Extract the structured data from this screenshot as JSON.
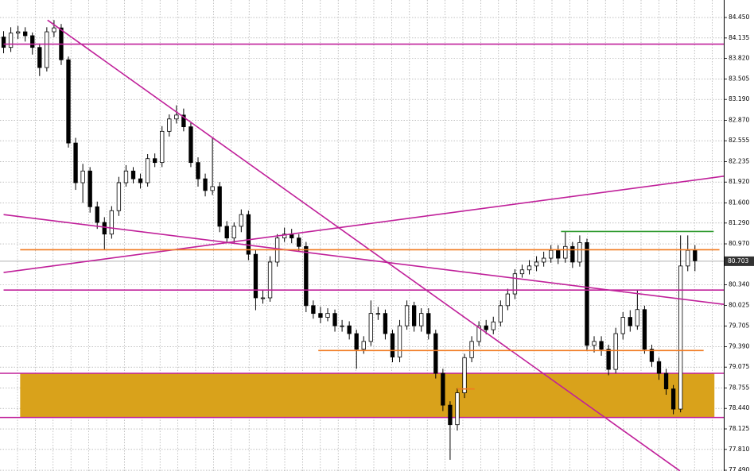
{
  "chart_data": {
    "type": "candlestick",
    "xlim": [
      -0.5,
      100
    ],
    "ylim": [
      77.478,
      84.719
    ],
    "yticks": [
      {
        "value": 84.45,
        "label": "84.450"
      },
      84.135,
      {
        "value": 83.82,
        "label": "83.820"
      },
      83.505,
      {
        "value": 83.19,
        "label": "83.190"
      },
      {
        "value": 82.87,
        "label": "82.870"
      },
      82.555,
      82.235,
      {
        "value": 81.92,
        "label": "81.920"
      },
      {
        "value": 81.6,
        "label": "81.600"
      },
      {
        "value": 81.29,
        "label": "81.290"
      },
      {
        "value": 80.97,
        "label": "80.970"
      },
      {
        "value": 80.34,
        "label": "80.340"
      },
      80.025,
      79.705,
      {
        "value": 79.39,
        "label": "79.390"
      },
      79.075,
      78.755,
      {
        "value": 78.44,
        "label": "78.440"
      },
      78.125,
      {
        "value": 77.81,
        "label": "77.810"
      },
      {
        "value": 77.49,
        "label": "77.490"
      }
    ],
    "grid": true,
    "up_color": "#ffffff",
    "down_color": "#000000",
    "open": [
      84.15,
      83.99,
      84.21,
      84.23,
      84.17,
      83.99,
      83.68,
      84.23,
      84.29,
      83.8,
      82.52,
      81.91,
      82.09,
      81.54,
      81.3,
      81.12,
      81.48,
      81.91,
      82.09,
      81.97,
      81.91,
      82.28,
      82.22,
      82.7,
      82.89,
      82.95,
      82.77,
      82.22,
      81.97,
      81.79,
      81.85,
      81.24,
      81.06,
      81.24,
      81.42,
      80.81,
      80.14,
      80.14,
      80.69,
      81.06,
      81.12,
      81.06,
      80.93,
      80.02,
      79.9,
      79.84,
      79.9,
      79.71,
      79.71,
      79.59,
      79.35,
      79.47,
      79.9,
      79.9,
      79.59,
      79.23,
      79.71,
      80.02,
      79.71,
      79.9,
      79.59,
      78.98,
      78.49,
      78.19,
      78.68,
      79.22,
      79.47,
      79.71,
      79.65,
      79.77,
      80.02,
      80.2,
      80.51,
      80.57,
      80.63,
      80.69,
      80.75,
      80.87,
      80.75,
      80.93,
      80.69,
      80.99,
      79.41,
      79.47,
      79.35,
      79.04,
      79.59,
      79.84,
      79.71,
      79.96,
      79.35,
      79.16,
      78.98,
      78.74,
      78.43,
      80.63,
      80.87
    ],
    "high": [
      84.24,
      84.3,
      84.32,
      84.3,
      84.22,
      84.05,
      84.3,
      84.41,
      84.35,
      83.85,
      82.6,
      82.2,
      82.15,
      81.62,
      81.38,
      81.55,
      82.0,
      82.18,
      82.15,
      82.05,
      82.35,
      82.36,
      82.78,
      82.96,
      83.1,
      83.05,
      82.85,
      82.3,
      82.05,
      82.6,
      81.92,
      81.32,
      81.3,
      81.5,
      81.48,
      80.88,
      80.25,
      80.78,
      81.12,
      81.22,
      81.2,
      81.12,
      81.0,
      80.1,
      80.0,
      79.98,
      79.96,
      79.8,
      79.78,
      79.65,
      79.55,
      80.1,
      80.0,
      79.96,
      79.65,
      79.8,
      80.1,
      80.08,
      79.98,
      79.98,
      79.65,
      79.05,
      78.55,
      78.75,
      79.28,
      79.55,
      79.78,
      79.8,
      79.85,
      80.1,
      80.28,
      80.58,
      80.65,
      80.72,
      80.78,
      80.85,
      80.95,
      80.95,
      81.16,
      81.0,
      81.1,
      81.05,
      79.55,
      79.55,
      79.42,
      79.68,
      79.92,
      79.95,
      80.25,
      80.02,
      79.42,
      79.22,
      79.05,
      78.8,
      81.1,
      81.1,
      80.95
    ],
    "low": [
      83.9,
      83.92,
      84.12,
      84.08,
      83.88,
      83.55,
      83.62,
      84.15,
      83.72,
      82.45,
      81.8,
      81.6,
      81.45,
      81.2,
      80.88,
      81.05,
      81.4,
      81.85,
      81.9,
      81.82,
      81.85,
      82.15,
      82.15,
      82.62,
      82.82,
      82.7,
      82.15,
      81.85,
      81.7,
      81.72,
      81.15,
      80.98,
      80.98,
      81.15,
      80.72,
      79.95,
      80.05,
      80.08,
      80.62,
      81.0,
      80.98,
      80.85,
      79.92,
      79.82,
      79.75,
      79.78,
      79.62,
      79.62,
      79.5,
      79.05,
      79.28,
      79.4,
      79.8,
      79.5,
      79.15,
      79.15,
      79.65,
      79.62,
      79.62,
      79.5,
      78.9,
      78.4,
      77.65,
      78.1,
      78.6,
      79.15,
      79.4,
      79.58,
      79.58,
      79.7,
      79.95,
      80.12,
      80.45,
      80.5,
      80.55,
      80.62,
      80.68,
      80.66,
      80.68,
      80.6,
      80.62,
      79.32,
      79.3,
      79.25,
      78.95,
      78.98,
      79.5,
      79.62,
      79.65,
      79.28,
      79.08,
      78.88,
      78.65,
      78.35,
      78.38,
      80.55,
      80.55
    ],
    "close": [
      83.99,
      84.21,
      84.23,
      84.17,
      83.99,
      83.68,
      84.23,
      84.29,
      83.8,
      82.52,
      81.91,
      82.09,
      81.54,
      81.3,
      81.12,
      81.48,
      81.91,
      82.09,
      81.97,
      81.91,
      82.28,
      82.22,
      82.7,
      82.89,
      82.95,
      82.77,
      82.22,
      81.97,
      81.79,
      81.85,
      81.24,
      81.06,
      81.24,
      81.42,
      80.81,
      80.14,
      80.14,
      80.69,
      81.06,
      81.12,
      81.06,
      80.93,
      80.02,
      79.9,
      79.84,
      79.9,
      79.71,
      79.71,
      79.59,
      79.35,
      79.47,
      79.9,
      79.9,
      79.59,
      79.23,
      79.71,
      80.02,
      79.71,
      79.9,
      79.59,
      78.98,
      78.49,
      78.19,
      78.68,
      79.22,
      79.47,
      79.71,
      79.65,
      79.77,
      80.02,
      80.2,
      80.51,
      80.57,
      80.63,
      80.69,
      80.75,
      80.87,
      80.75,
      80.93,
      80.69,
      80.99,
      79.41,
      79.47,
      79.35,
      79.04,
      79.59,
      79.84,
      79.71,
      79.96,
      79.35,
      79.16,
      78.98,
      78.74,
      78.43,
      80.63,
      80.87,
      80.71
    ],
    "last_price": 80.703,
    "last_price_color": "#b0b0b0",
    "zones": [
      {
        "color": "#d9a21b",
        "border_color": "#c0209a",
        "x": [
          2.3,
          98.7
        ],
        "y": [
          78.98,
          78.3
        ]
      }
    ],
    "lines": [
      {
        "color": "#c0209a",
        "x": [
          0,
          100
        ],
        "y": [
          84.04,
          84.04
        ]
      },
      {
        "color": "#c0209a",
        "x": [
          0,
          100
        ],
        "y": [
          80.26,
          80.26
        ]
      },
      {
        "color": "#c0209a",
        "x": [
          6.1,
          93.9
        ],
        "y": [
          84.41,
          77.48
        ]
      },
      {
        "color": "#c0209a",
        "x": [
          0,
          100
        ],
        "y": [
          81.42,
          80.04
        ]
      },
      {
        "color": "#c0209a",
        "x": [
          0,
          100
        ],
        "y": [
          80.53,
          82.01
        ]
      },
      {
        "color": "#f07a20",
        "x": [
          2.3,
          99.4
        ],
        "y": [
          80.88,
          80.88
        ]
      },
      {
        "color": "#f07a20",
        "x": [
          43.7,
          97.2
        ],
        "y": [
          79.33,
          79.33
        ]
      },
      {
        "color": "#f07a20",
        "x": [
          63,
          65.4
        ],
        "y": [
          78.74,
          78.74
        ]
      },
      {
        "color": "#2e9a2e",
        "x": [
          77.4,
          98.6
        ],
        "y": [
          81.16,
          81.16
        ]
      }
    ]
  }
}
